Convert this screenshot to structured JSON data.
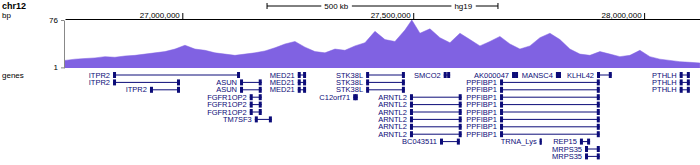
{
  "chart_data": {
    "type": "area",
    "chromosome": "chr12",
    "x_label": "bp",
    "assembly": "hg19",
    "scale_bar": {
      "value": 500000,
      "label": "500 kb"
    },
    "gene_track_label": "genes",
    "color": "#8062e2",
    "xlim": [
      26746000,
      28121000
    ],
    "xticks": [
      {
        "value": 27000000,
        "label": "27,000,000"
      },
      {
        "value": 27500000,
        "label": "27,500,000"
      },
      {
        "value": 28000000,
        "label": "28,000,000"
      }
    ],
    "ylim": [
      0,
      76
    ],
    "yticks": [
      1,
      76
    ],
    "x": [
      26746000,
      26767650,
      26789300,
      26810950,
      26832600,
      26854250,
      26875900,
      26897550,
      26919200,
      26940850,
      26962500,
      26984150,
      27005800,
      27027450,
      27049100,
      27070750,
      27092400,
      27114050,
      27135700,
      27157350,
      27179000,
      27200650,
      27222300,
      27243950,
      27265600,
      27287250,
      27308900,
      27330550,
      27352200,
      27373850,
      27395500,
      27417150,
      27438800,
      27460450,
      27482100,
      27497000,
      27514575,
      27536225,
      27557875,
      27579525,
      27601175,
      27622825,
      27644475,
      27666125,
      27687775,
      27709425,
      27731075,
      27752725,
      27774375,
      27796025,
      27817675,
      27839325,
      27860975,
      27882625,
      27904275,
      27925925,
      27947575,
      27969225,
      27990875,
      28012525,
      28034175,
      28055825,
      28077475,
      28099125,
      28120775
    ],
    "values": [
      12,
      14,
      15,
      16,
      18,
      17,
      19,
      20,
      22,
      24,
      26,
      30,
      36,
      30,
      28,
      24,
      22,
      20,
      22,
      24,
      27,
      32,
      38,
      42,
      33,
      26,
      24,
      30,
      28,
      35,
      40,
      58,
      45,
      42,
      60,
      76,
      55,
      62,
      48,
      40,
      55,
      45,
      35,
      42,
      50,
      38,
      30,
      35,
      48,
      55,
      45,
      30,
      22,
      20,
      26,
      22,
      18,
      20,
      28,
      18,
      14,
      12,
      10,
      9,
      8
    ],
    "genes": [
      {
        "name": "ITPR2",
        "start": 26850000,
        "end": 27125000
      },
      {
        "name": "ITPR2",
        "start": 26850000,
        "end": 26995000
      },
      {
        "name": "ITPR2",
        "start": 26930000,
        "end": 26995000
      },
      {
        "name": "ASUN",
        "start": 27125000,
        "end": 27172000
      },
      {
        "name": "ASUN",
        "start": 27125000,
        "end": 27172000
      },
      {
        "name": "FGFR1OP2",
        "start": 27146000,
        "end": 27172000
      },
      {
        "name": "FGFR1OP2",
        "start": 27146000,
        "end": 27172000
      },
      {
        "name": "FGFR1OP2",
        "start": 27146000,
        "end": 27172000
      },
      {
        "name": "TM7SF3",
        "start": 27157000,
        "end": 27194000
      },
      {
        "name": "MED21",
        "start": 27250000,
        "end": 27268000
      },
      {
        "name": "MED21",
        "start": 27250000,
        "end": 27268000
      },
      {
        "name": "MED21",
        "start": 27250000,
        "end": 27268000
      },
      {
        "name": "STK38L",
        "start": 27398000,
        "end": 27482000
      },
      {
        "name": "STK38L",
        "start": 27398000,
        "end": 27482000
      },
      {
        "name": "STK38L",
        "start": 27398000,
        "end": 27482000
      },
      {
        "name": "C12orf71",
        "start": 27370000,
        "end": 27380000
      },
      {
        "name": "SMCO2",
        "start": 27566000,
        "end": 27580000
      },
      {
        "name": "ARNTL2",
        "start": 27493000,
        "end": 27605000
      },
      {
        "name": "ARNTL2",
        "start": 27493000,
        "end": 27605000
      },
      {
        "name": "ARNTL2",
        "start": 27493000,
        "end": 27605000
      },
      {
        "name": "ARNTL2",
        "start": 27493000,
        "end": 27605000
      },
      {
        "name": "ARNTL2",
        "start": 27493000,
        "end": 27605000
      },
      {
        "name": "ARNTL2",
        "start": 27493000,
        "end": 27605000
      },
      {
        "name": "AK000047",
        "start": 27714000,
        "end": 27727000
      },
      {
        "name": "MANSC4",
        "start": 27809000,
        "end": 27820000
      },
      {
        "name": "KLHL42",
        "start": 27898000,
        "end": 27930000
      },
      {
        "name": "PPFIBP1",
        "start": 27688000,
        "end": 27904000
      },
      {
        "name": "PPFIBP1",
        "start": 27688000,
        "end": 27904000
      },
      {
        "name": "PPFIBP1",
        "start": 27688000,
        "end": 27904000
      },
      {
        "name": "PPFIBP1",
        "start": 27688000,
        "end": 27904000
      },
      {
        "name": "PPFIBP1",
        "start": 27688000,
        "end": 27904000
      },
      {
        "name": "PPFIBP1",
        "start": 27688000,
        "end": 27904000
      },
      {
        "name": "PPFIBP1",
        "start": 27688000,
        "end": 27904000
      },
      {
        "name": "PPFIBP1",
        "start": 27688000,
        "end": 27904000
      },
      {
        "name": "BC043511",
        "start": 27558000,
        "end": 27601000
      },
      {
        "name": "TRNA_Lys",
        "start": 27774000,
        "end": 27778000
      },
      {
        "name": "REP15",
        "start": 27861000,
        "end": 27883000
      },
      {
        "name": "MRPS35",
        "start": 27872000,
        "end": 27904000
      },
      {
        "name": "MRPS35",
        "start": 27872000,
        "end": 27904000
      },
      {
        "name": "PTHLH",
        "start": 28077000,
        "end": 28099000
      },
      {
        "name": "PTHLH",
        "start": 28077000,
        "end": 28099000
      },
      {
        "name": "PTHLH",
        "start": 28077000,
        "end": 28099000
      }
    ]
  }
}
